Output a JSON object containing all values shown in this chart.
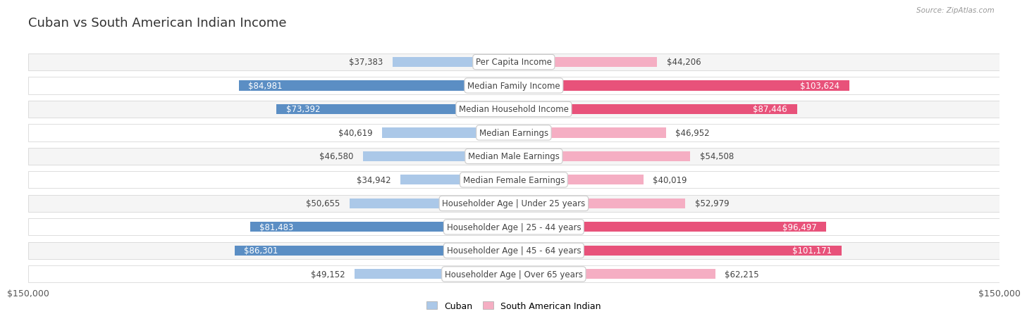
{
  "title": "Cuban vs South American Indian Income",
  "source": "Source: ZipAtlas.com",
  "categories": [
    "Per Capita Income",
    "Median Family Income",
    "Median Household Income",
    "Median Earnings",
    "Median Male Earnings",
    "Median Female Earnings",
    "Householder Age | Under 25 years",
    "Householder Age | 25 - 44 years",
    "Householder Age | 45 - 64 years",
    "Householder Age | Over 65 years"
  ],
  "cuban_values": [
    37383,
    84981,
    73392,
    40619,
    46580,
    34942,
    50655,
    81483,
    86301,
    49152
  ],
  "sa_indian_values": [
    44206,
    103624,
    87446,
    46952,
    54508,
    40019,
    52979,
    96497,
    101171,
    62215
  ],
  "cuban_labels": [
    "$37,383",
    "$84,981",
    "$73,392",
    "$40,619",
    "$46,580",
    "$34,942",
    "$50,655",
    "$81,483",
    "$86,301",
    "$49,152"
  ],
  "sa_indian_labels": [
    "$44,206",
    "$103,624",
    "$87,446",
    "$46,952",
    "$54,508",
    "$40,019",
    "$52,979",
    "$96,497",
    "$101,171",
    "$62,215"
  ],
  "cuban_color_light": "#abc8e8",
  "cuban_color_dark": "#5b8ec4",
  "sa_indian_color_light": "#f5aec3",
  "sa_indian_color_dark": "#e8527a",
  "max_value": 150000,
  "cuban_dark_threshold": 60000,
  "sa_dark_threshold": 80000,
  "row_bg_odd": "#f5f5f5",
  "row_bg_even": "#ffffff",
  "title_fontsize": 13,
  "label_fontsize": 8.5,
  "category_fontsize": 8.5,
  "legend_labels": [
    "Cuban",
    "South American Indian"
  ],
  "x_tick_label_left": "$150,000",
  "x_tick_label_right": "$150,000"
}
